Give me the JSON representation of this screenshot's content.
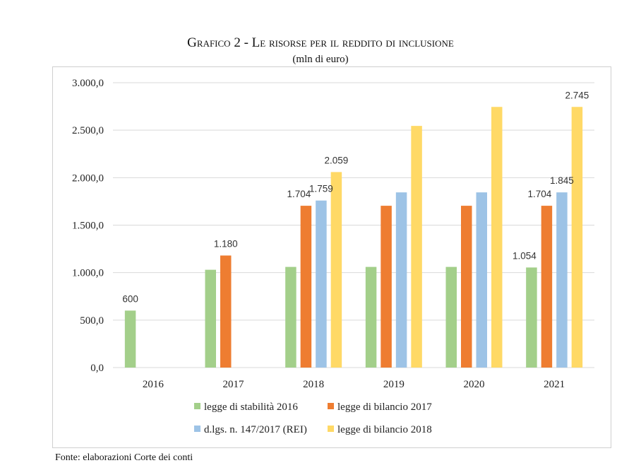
{
  "title": {
    "prefix": "Grafico 2 - ",
    "main": "Le risorse per il reddito di inclusione"
  },
  "subtitle": "(mln di euro)",
  "source": "Fonte: elaborazioni Corte dei conti",
  "colors": {
    "legge_stabilita_2016": "#a3cf8a",
    "legge_bilancio_2017": "#ee7d31",
    "dlgs_147_2017": "#9dc3e6",
    "legge_bilancio_2018": "#ffd966",
    "gridline": "#d9d9d9"
  },
  "chart_data": {
    "type": "bar",
    "categories": [
      "2016",
      "2017",
      "2018",
      "2019",
      "2020",
      "2021"
    ],
    "ylim": [
      0,
      3000
    ],
    "yticks": [
      "0,0",
      "500,0",
      "1.000,0",
      "1.500,0",
      "2.000,0",
      "2.500,0",
      "3.000,0"
    ],
    "ytick_values": [
      0,
      500,
      1000,
      1500,
      2000,
      2500,
      3000
    ],
    "grid": true,
    "legend_position": "bottom",
    "series": [
      {
        "name": "legge di stabilità 2016",
        "color_key": "legge_stabilita_2016",
        "values": [
          600,
          1030,
          1060,
          1060,
          1060,
          1054
        ]
      },
      {
        "name": "legge di bilancio 2017",
        "color_key": "legge_bilancio_2017",
        "values": [
          null,
          1180,
          1704,
          1704,
          1704,
          1704
        ]
      },
      {
        "name": "d.lgs. n. 147/2017 (REI)",
        "color_key": "dlgs_147_2017",
        "values": [
          null,
          null,
          1759,
          1845,
          1845,
          1845
        ]
      },
      {
        "name": "legge di bilancio 2018",
        "color_key": "legge_bilancio_2018",
        "values": [
          null,
          null,
          2059,
          2545,
          2745,
          2745
        ]
      }
    ],
    "data_labels": [
      {
        "series": 0,
        "category": 0,
        "text": "600"
      },
      {
        "series": 1,
        "category": 1,
        "text": "1.180"
      },
      {
        "series": 1,
        "category": 2,
        "text": "1.704"
      },
      {
        "series": 2,
        "category": 2,
        "text": "1.759"
      },
      {
        "series": 3,
        "category": 2,
        "text": "2.059"
      },
      {
        "series": 0,
        "category": 5,
        "text": "1.054"
      },
      {
        "series": 1,
        "category": 5,
        "text": "1.704"
      },
      {
        "series": 2,
        "category": 5,
        "text": "1.845"
      },
      {
        "series": 3,
        "category": 5,
        "text": "2.745"
      }
    ]
  }
}
